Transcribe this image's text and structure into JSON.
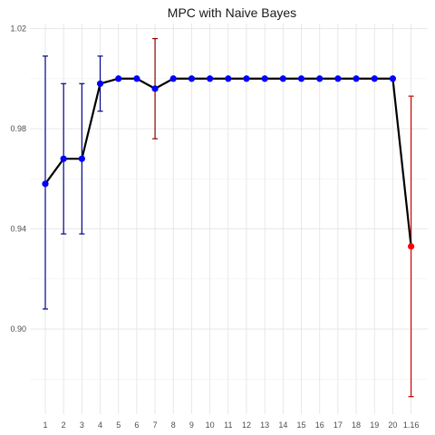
{
  "chart_data": {
    "type": "line",
    "title": "MPC with Naive Bayes",
    "xlabel": "",
    "ylabel": "",
    "categories": [
      "1",
      "2",
      "3",
      "4",
      "5",
      "6",
      "7",
      "8",
      "9",
      "10",
      "11",
      "12",
      "13",
      "14",
      "15",
      "16",
      "17",
      "18",
      "19",
      "20",
      "1.16"
    ],
    "values": [
      0.958,
      0.968,
      0.968,
      0.998,
      1.0,
      1.0,
      0.996,
      1.0,
      1.0,
      1.0,
      1.0,
      1.0,
      1.0,
      1.0,
      1.0,
      1.0,
      1.0,
      1.0,
      1.0,
      1.0,
      0.933
    ],
    "error_low": [
      0.908,
      0.938,
      0.938,
      0.987,
      null,
      null,
      0.976,
      null,
      null,
      null,
      null,
      null,
      null,
      null,
      null,
      null,
      null,
      null,
      null,
      null,
      0.873
    ],
    "error_high": [
      1.009,
      0.998,
      0.998,
      1.009,
      null,
      null,
      1.016,
      null,
      null,
      null,
      null,
      null,
      null,
      null,
      null,
      null,
      null,
      null,
      null,
      null,
      0.993
    ],
    "point_colors": [
      "#0000ff",
      "#0000ff",
      "#0000ff",
      "#0000ff",
      "#0000ff",
      "#0000ff",
      "#0000ff",
      "#0000ff",
      "#0000ff",
      "#0000ff",
      "#0000ff",
      "#0000ff",
      "#0000ff",
      "#0000ff",
      "#0000ff",
      "#0000ff",
      "#0000ff",
      "#0000ff",
      "#0000ff",
      "#0000ff",
      "#ff0000"
    ],
    "errorbar_colors": [
      "#00008b",
      "#00008b",
      "#00008b",
      "#00008b",
      "#00008b",
      "#00008b",
      "#8b0000",
      "#00008b",
      "#00008b",
      "#00008b",
      "#00008b",
      "#00008b",
      "#00008b",
      "#00008b",
      "#00008b",
      "#00008b",
      "#00008b",
      "#00008b",
      "#00008b",
      "#00008b",
      "#cc0000"
    ],
    "line_color": "#000000",
    "ylim": [
      0.866,
      1.022
    ],
    "y_ticks": [
      0.9,
      0.94,
      0.98,
      1.02
    ],
    "y_tick_labels": [
      "0.90",
      "0.94",
      "0.98",
      "1.02"
    ],
    "grid": true,
    "legend": "none"
  }
}
